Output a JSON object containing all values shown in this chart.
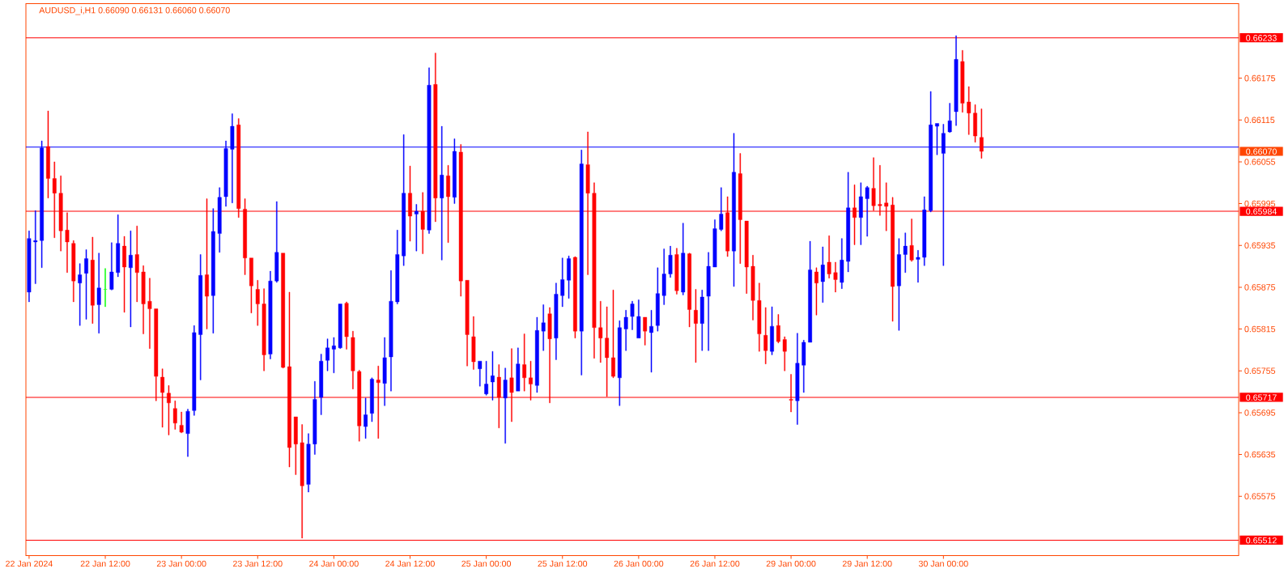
{
  "chart_data": {
    "type": "candlestick",
    "title": "AUDUSD_i,H1 0.66090 0.66131 0.66060 0.66070",
    "categories": [
      "22 Jan 2024",
      null,
      null,
      null,
      null,
      null,
      null,
      null,
      null,
      null,
      null,
      null,
      "22 Jan 12:00",
      null,
      null,
      null,
      null,
      null,
      null,
      null,
      null,
      null,
      null,
      null,
      "23 Jan 00:00",
      null,
      null,
      null,
      null,
      null,
      null,
      null,
      null,
      null,
      null,
      null,
      "23 Jan 12:00",
      null,
      null,
      null,
      null,
      null,
      null,
      null,
      null,
      null,
      null,
      null,
      "24 Jan 00:00",
      null,
      null,
      null,
      null,
      null,
      null,
      null,
      null,
      null,
      null,
      null,
      "24 Jan 12:00",
      null,
      null,
      null,
      null,
      null,
      null,
      null,
      null,
      null,
      null,
      null,
      "25 Jan 00:00",
      null,
      null,
      null,
      null,
      null,
      null,
      null,
      null,
      null,
      null,
      null,
      "25 Jan 12:00",
      null,
      null,
      null,
      null,
      null,
      null,
      null,
      null,
      null,
      null,
      null,
      "26 Jan 00:00",
      null,
      null,
      null,
      null,
      null,
      null,
      null,
      null,
      null,
      null,
      null,
      "26 Jan 12:00",
      null,
      null,
      null,
      null,
      null,
      null,
      null,
      null,
      null,
      null,
      null,
      "29 Jan 00:00",
      null,
      null,
      null,
      null,
      null,
      null,
      null,
      null,
      null,
      null,
      null,
      "29 Jan 12:00",
      null,
      null,
      null,
      null,
      null,
      null,
      null,
      null,
      null,
      null,
      null,
      "30 Jan 00:00",
      null,
      null,
      null,
      null,
      null,
      null,
      null,
      null,
      null,
      null,
      null,
      null,
      null,
      null,
      null,
      null,
      null,
      null,
      null,
      null,
      null,
      null,
      null,
      null,
      null,
      null,
      null,
      null,
      null,
      null,
      null,
      null,
      null,
      null,
      null,
      null,
      null,
      null,
      null,
      null,
      null,
      null,
      null,
      null,
      null,
      null
    ],
    "ohlc": [
      [
        0.65868,
        0.65956,
        0.65854,
        0.65945
      ],
      [
        0.6594,
        0.65985,
        0.6588,
        0.65942
      ],
      [
        0.65942,
        0.66085,
        0.65903,
        0.66075
      ],
      [
        0.66077,
        0.66128,
        0.66003,
        0.66031
      ],
      [
        0.66031,
        0.66055,
        0.65946,
        0.6601
      ],
      [
        0.6601,
        0.66035,
        0.65927,
        0.65956
      ],
      [
        0.65957,
        0.65982,
        0.65896,
        0.6594
      ],
      [
        0.65938,
        0.65942,
        0.65854,
        0.65884
      ],
      [
        0.65881,
        0.65909,
        0.6582,
        0.65893
      ],
      [
        0.65895,
        0.65929,
        0.65829,
        0.65916
      ],
      [
        0.65914,
        0.65947,
        0.65823,
        0.65849
      ],
      [
        0.6585,
        0.65924,
        0.65809,
        0.65874
      ],
      [
        0.65872,
        0.65902,
        0.65847,
        0.65872
      ],
      [
        0.65872,
        0.65939,
        0.65871,
        0.65897
      ],
      [
        0.65896,
        0.65979,
        0.6589,
        0.65938
      ],
      [
        0.65934,
        0.65948,
        0.65839,
        0.65904
      ],
      [
        0.65903,
        0.65956,
        0.65818,
        0.65921
      ],
      [
        0.65922,
        0.65963,
        0.65854,
        0.65896
      ],
      [
        0.65897,
        0.65906,
        0.65808,
        0.65851
      ],
      [
        0.65855,
        0.65888,
        0.65787,
        0.65844
      ],
      [
        0.65844,
        0.65844,
        0.65712,
        0.65747
      ],
      [
        0.65746,
        0.65758,
        0.65674,
        0.65724
      ],
      [
        0.65723,
        0.65734,
        0.65663,
        0.65709
      ],
      [
        0.65701,
        0.65712,
        0.65671,
        0.6568
      ],
      [
        0.65677,
        0.65696,
        0.65666,
        0.65667
      ],
      [
        0.65665,
        0.657,
        0.65632,
        0.65697
      ],
      [
        0.65698,
        0.6582,
        0.65691,
        0.6581
      ],
      [
        0.65807,
        0.65922,
        0.65742,
        0.65892
      ],
      [
        0.65893,
        0.66002,
        0.65815,
        0.65862
      ],
      [
        0.65863,
        0.65988,
        0.65809,
        0.65955
      ],
      [
        0.65952,
        0.66018,
        0.65925,
        0.66004
      ],
      [
        0.66005,
        0.66085,
        0.65991,
        0.66074
      ],
      [
        0.66073,
        0.66124,
        0.65996,
        0.66106
      ],
      [
        0.66108,
        0.66117,
        0.65975,
        0.65988
      ],
      [
        0.65987,
        0.66002,
        0.65893,
        0.65917
      ],
      [
        0.65917,
        0.65917,
        0.65838,
        0.65877
      ],
      [
        0.65872,
        0.65885,
        0.6582,
        0.65851
      ],
      [
        0.65851,
        0.65873,
        0.65755,
        0.65778
      ],
      [
        0.65779,
        0.65898,
        0.65772,
        0.65884
      ],
      [
        0.65884,
        0.65998,
        0.65882,
        0.65925
      ],
      [
        0.65924,
        0.65924,
        0.65759,
        0.6576
      ],
      [
        0.65761,
        0.65868,
        0.65617,
        0.65645
      ],
      [
        0.65689,
        0.65689,
        0.65606,
        0.6565
      ],
      [
        0.65652,
        0.65678,
        0.65515,
        0.6559
      ],
      [
        0.65592,
        0.65665,
        0.65581,
        0.6565
      ],
      [
        0.6565,
        0.6574,
        0.65635,
        0.65714
      ],
      [
        0.65717,
        0.65779,
        0.65692,
        0.65769
      ],
      [
        0.6577,
        0.65801,
        0.65755,
        0.65788
      ],
      [
        0.65786,
        0.65803,
        0.65752,
        0.65791
      ],
      [
        0.65788,
        0.65851,
        0.65787,
        0.65851
      ],
      [
        0.65852,
        0.65854,
        0.65786,
        0.65804
      ],
      [
        0.65803,
        0.65812,
        0.65729,
        0.65755
      ],
      [
        0.65754,
        0.65756,
        0.65654,
        0.65676
      ],
      [
        0.65675,
        0.65716,
        0.65658,
        0.65692
      ],
      [
        0.65694,
        0.65745,
        0.65682,
        0.65743
      ],
      [
        0.65742,
        0.65762,
        0.65658,
        0.65738
      ],
      [
        0.65737,
        0.65803,
        0.65705,
        0.65774
      ],
      [
        0.65775,
        0.65899,
        0.65726,
        0.65855
      ],
      [
        0.65854,
        0.65957,
        0.65851,
        0.65922
      ],
      [
        0.6592,
        0.66094,
        0.65906,
        0.6601
      ],
      [
        0.6601,
        0.66049,
        0.65941,
        0.65977
      ],
      [
        0.6598,
        0.65994,
        0.65927,
        0.65984
      ],
      [
        0.65984,
        0.66011,
        0.65923,
        0.65958
      ],
      [
        0.65957,
        0.6619,
        0.65952,
        0.66165
      ],
      [
        0.66166,
        0.66211,
        0.65969,
        0.66003
      ],
      [
        0.66003,
        0.66106,
        0.65914,
        0.66036
      ],
      [
        0.66035,
        0.6605,
        0.65939,
        0.66005
      ],
      [
        0.66004,
        0.66088,
        0.65995,
        0.6607
      ],
      [
        0.66069,
        0.6608,
        0.65862,
        0.65884
      ],
      [
        0.65885,
        0.65885,
        0.65762,
        0.65807
      ],
      [
        0.65804,
        0.65833,
        0.65757,
        0.65768
      ],
      [
        0.65758,
        0.65769,
        0.65733,
        0.65769
      ],
      [
        0.65722,
        0.65769,
        0.6572,
        0.65736
      ],
      [
        0.65739,
        0.65783,
        0.65713,
        0.65748
      ],
      [
        0.65746,
        0.65764,
        0.65673,
        0.65717
      ],
      [
        0.65716,
        0.65759,
        0.65651,
        0.65742
      ],
      [
        0.65745,
        0.65787,
        0.65682,
        0.65724
      ],
      [
        0.65726,
        0.65788,
        0.65726,
        0.65765
      ],
      [
        0.65764,
        0.65808,
        0.65726,
        0.65745
      ],
      [
        0.65745,
        0.65769,
        0.65713,
        0.65736
      ],
      [
        0.65734,
        0.65832,
        0.65724,
        0.65813
      ],
      [
        0.65812,
        0.6585,
        0.65784,
        0.65824
      ],
      [
        0.65837,
        0.65846,
        0.65709,
        0.65801
      ],
      [
        0.65802,
        0.65881,
        0.65771,
        0.65865
      ],
      [
        0.65863,
        0.65917,
        0.65847,
        0.65886
      ],
      [
        0.65885,
        0.6592,
        0.65859,
        0.65916
      ],
      [
        0.65918,
        0.65919,
        0.65802,
        0.65812
      ],
      [
        0.65812,
        0.66072,
        0.65749,
        0.66052
      ],
      [
        0.66051,
        0.66098,
        0.65893,
        0.6601
      ],
      [
        0.6601,
        0.66025,
        0.65773,
        0.65817
      ],
      [
        0.65817,
        0.65855,
        0.65767,
        0.65802
      ],
      [
        0.65802,
        0.65847,
        0.65718,
        0.65774
      ],
      [
        0.65774,
        0.65871,
        0.65745,
        0.65747
      ],
      [
        0.65745,
        0.65827,
        0.65705,
        0.65817
      ],
      [
        0.65815,
        0.65842,
        0.65784,
        0.65832
      ],
      [
        0.65833,
        0.65855,
        0.65814,
        0.65851
      ],
      [
        0.65802,
        0.65857,
        0.65802,
        0.65833
      ],
      [
        0.65832,
        0.65832,
        0.65792,
        0.65812
      ],
      [
        0.6581,
        0.65842,
        0.65753,
        0.65819
      ],
      [
        0.6582,
        0.65903,
        0.65812,
        0.65866
      ],
      [
        0.65863,
        0.6593,
        0.6585,
        0.65894
      ],
      [
        0.65894,
        0.65934,
        0.65889,
        0.65921
      ],
      [
        0.65922,
        0.65931,
        0.65865,
        0.6587
      ],
      [
        0.65868,
        0.65967,
        0.65864,
        0.65924
      ],
      [
        0.65923,
        0.65924,
        0.65818,
        0.65843
      ],
      [
        0.65842,
        0.65872,
        0.65767,
        0.65823
      ],
      [
        0.65823,
        0.65871,
        0.65784,
        0.65861
      ],
      [
        0.65862,
        0.65925,
        0.65784,
        0.65905
      ],
      [
        0.65904,
        0.65972,
        0.65904,
        0.65959
      ],
      [
        0.65958,
        0.66018,
        0.65956,
        0.6598
      ],
      [
        0.65982,
        0.66005,
        0.65919,
        0.65927
      ],
      [
        0.65927,
        0.66096,
        0.65876,
        0.6604
      ],
      [
        0.66038,
        0.66067,
        0.65909,
        0.65972
      ],
      [
        0.6597,
        0.6597,
        0.65866,
        0.65904
      ],
      [
        0.65905,
        0.65921,
        0.65828,
        0.65856
      ],
      [
        0.65856,
        0.65881,
        0.65783,
        0.65808
      ],
      [
        0.65806,
        0.65846,
        0.65765,
        0.65784
      ],
      [
        0.65783,
        0.65847,
        0.65778,
        0.65819
      ],
      [
        0.6582,
        0.65836,
        0.65795,
        0.65797
      ],
      [
        0.658,
        0.65804,
        0.65755,
        0.65783
      ],
      [
        0.65714,
        0.6575,
        0.65696,
        0.65713
      ],
      [
        0.65712,
        0.65809,
        0.65678,
        0.65766
      ],
      [
        0.65763,
        0.65799,
        0.65724,
        0.65796
      ],
      [
        0.65796,
        0.65941,
        0.65796,
        0.659
      ],
      [
        0.65897,
        0.65903,
        0.65835,
        0.65881
      ],
      [
        0.65883,
        0.65933,
        0.65853,
        0.65907
      ],
      [
        0.65911,
        0.65949,
        0.65888,
        0.65894
      ],
      [
        0.65896,
        0.65911,
        0.65868,
        0.65886
      ],
      [
        0.65882,
        0.65945,
        0.65873,
        0.65914
      ],
      [
        0.65912,
        0.6604,
        0.65897,
        0.65989
      ],
      [
        0.65989,
        0.66022,
        0.65936,
        0.65975
      ],
      [
        0.65975,
        0.66025,
        0.65936,
        0.66005
      ],
      [
        0.66002,
        0.6602,
        0.65948,
        0.66018
      ],
      [
        0.66017,
        0.66061,
        0.65985,
        0.65992
      ],
      [
        0.65994,
        0.6605,
        0.65978,
        0.65992
      ],
      [
        0.65996,
        0.66025,
        0.65956,
        0.65991
      ],
      [
        0.65993,
        0.66004,
        0.65826,
        0.65876
      ],
      [
        0.65877,
        0.65945,
        0.65813,
        0.65922
      ],
      [
        0.65922,
        0.65953,
        0.65896,
        0.65934
      ],
      [
        0.65935,
        0.65973,
        0.65912,
        0.65914
      ],
      [
        0.65915,
        0.65928,
        0.65882,
        0.65918
      ],
      [
        0.65918,
        0.66005,
        0.65906,
        0.65986
      ],
      [
        0.65985,
        0.66156,
        0.65983,
        0.66108
      ],
      [
        0.66106,
        0.6611,
        0.66065,
        0.6611
      ],
      [
        0.66067,
        0.66109,
        0.65906,
        0.66096
      ],
      [
        0.66098,
        0.66139,
        0.66097,
        0.66114
      ],
      [
        0.66127,
        0.66236,
        0.66107,
        0.66202
      ],
      [
        0.66199,
        0.66215,
        0.66126,
        0.66139
      ],
      [
        0.66141,
        0.66163,
        0.66094,
        0.66125
      ],
      [
        0.66125,
        0.66137,
        0.66083,
        0.66092
      ],
      [
        0.6609,
        0.66131,
        0.6606,
        0.6607
      ],
      null,
      null,
      null,
      null,
      null,
      null,
      null,
      null,
      null,
      null,
      null,
      null,
      null,
      null,
      null,
      null,
      null,
      null,
      null,
      null,
      null,
      null,
      null,
      null,
      null,
      null,
      null,
      null,
      null,
      null,
      null,
      null,
      null,
      null,
      null,
      null,
      null,
      null,
      null,
      null
    ],
    "colors": [
      "#0000ff",
      "#0000ff",
      "#0000ff",
      "#ff0000",
      "#ff0000",
      "#ff0000",
      "#ff0000",
      "#ff0000",
      "#0000ff",
      "#0000ff",
      "#ff0000",
      "#0000ff",
      "#00ff00",
      "#0000ff",
      "#0000ff",
      "#ff0000",
      "#0000ff",
      "#ff0000",
      "#ff0000",
      "#ff0000",
      "#ff0000",
      "#ff0000",
      "#ff0000",
      "#ff0000",
      "#ff0000",
      "#0000ff",
      "#0000ff",
      "#0000ff",
      "#ff0000",
      "#0000ff",
      "#0000ff",
      "#0000ff",
      "#0000ff",
      "#ff0000",
      "#ff0000",
      "#ff0000",
      "#ff0000",
      "#ff0000",
      "#0000ff",
      "#0000ff",
      "#ff0000",
      "#ff0000",
      "#ff0000",
      "#ff0000",
      "#0000ff",
      "#0000ff",
      "#0000ff",
      "#0000ff",
      "#0000ff",
      "#0000ff",
      "#ff0000",
      "#ff0000",
      "#ff0000",
      "#0000ff",
      "#0000ff",
      "#ff0000",
      "#0000ff",
      "#0000ff",
      "#0000ff",
      "#0000ff",
      "#ff0000",
      "#0000ff",
      "#ff0000",
      "#0000ff",
      "#ff0000",
      "#0000ff",
      "#ff0000",
      "#0000ff",
      "#ff0000",
      "#ff0000",
      "#ff0000",
      "#0000ff",
      "#0000ff",
      "#0000ff",
      "#ff0000",
      "#0000ff",
      "#ff0000",
      "#0000ff",
      "#ff0000",
      "#ff0000",
      "#0000ff",
      "#0000ff",
      "#ff0000",
      "#0000ff",
      "#0000ff",
      "#0000ff",
      "#ff0000",
      "#0000ff",
      "#ff0000",
      "#ff0000",
      "#ff0000",
      "#ff0000",
      "#ff0000",
      "#0000ff",
      "#0000ff",
      "#0000ff",
      "#0000ff",
      "#ff0000",
      "#0000ff",
      "#0000ff",
      "#0000ff",
      "#0000ff",
      "#ff0000",
      "#0000ff",
      "#ff0000",
      "#ff0000",
      "#0000ff",
      "#0000ff",
      "#0000ff",
      "#0000ff",
      "#ff0000",
      "#0000ff",
      "#ff0000",
      "#ff0000",
      "#ff0000",
      "#ff0000",
      "#ff0000",
      "#0000ff",
      "#ff0000",
      "#ff0000",
      "#ff0000",
      "#0000ff",
      "#0000ff",
      "#0000ff",
      "#ff0000",
      "#0000ff",
      "#ff0000",
      "#ff0000",
      "#0000ff",
      "#0000ff",
      "#ff0000",
      "#0000ff",
      "#0000ff",
      "#ff0000",
      "#ff0000",
      "#ff0000",
      "#ff0000",
      "#0000ff",
      "#0000ff",
      "#ff0000",
      "#0000ff",
      "#0000ff",
      "#0000ff",
      "#0000ff",
      "#0000ff",
      "#0000ff",
      "#0000ff",
      "#ff0000",
      "#ff0000",
      "#ff0000",
      "#ff0000",
      null,
      null,
      null,
      null,
      null,
      null,
      null,
      null,
      null,
      null,
      null,
      null,
      null,
      null,
      null,
      null,
      null,
      null,
      null,
      null,
      null,
      null,
      null,
      null,
      null,
      null,
      null,
      null,
      null,
      null,
      null,
      null,
      null,
      null,
      null,
      null,
      null,
      null,
      null,
      null
    ],
    "ylim": [
      0.6549,
      0.66282
    ],
    "yticks": [
      0.66175,
      0.66115,
      0.66055,
      0.65995,
      0.65935,
      0.65875,
      0.65815,
      0.65755,
      0.65695,
      0.65635,
      0.65575
    ],
    "ref_lines": [
      {
        "axis": "y",
        "value": 0.66233,
        "label": "0.66233",
        "color": "#ff0000"
      },
      {
        "axis": "y",
        "value": 0.66076,
        "color": "#0000ff"
      },
      {
        "axis": "y",
        "value": 0.65984,
        "label": "0.65984",
        "color": "#ff0000"
      },
      {
        "axis": "y",
        "value": 0.65717,
        "label": "0.65717",
        "color": "#ff0000"
      },
      {
        "axis": "y",
        "value": 0.65512,
        "label": "0.65512",
        "color": "#ff0000"
      }
    ],
    "annotations": [
      "0.66070"
    ]
  }
}
